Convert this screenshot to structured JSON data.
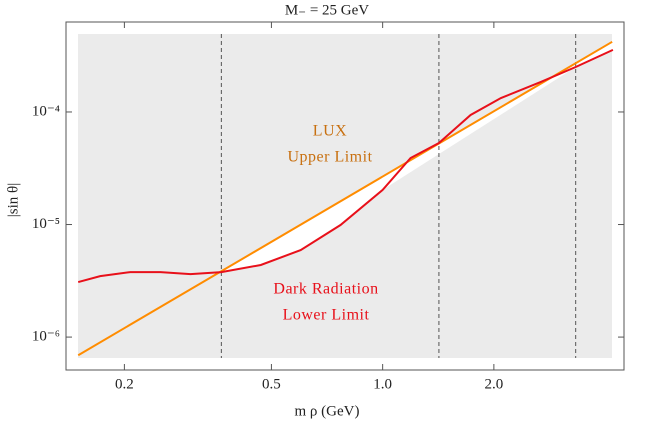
{
  "chart_data": {
    "type": "line",
    "title": "M₋ = 25 GeV",
    "x_label": "m ρ (GeV)",
    "y_label": "|sin θ|",
    "xscale": "log",
    "yscale": "log",
    "xlim": [
      0.139,
      4.5
    ],
    "ylim": [
      5.1e-07,
      0.00063
    ],
    "xticks": [
      0.2,
      0.5,
      {
        "value": 1,
        "label": "1.0"
      },
      {
        "value": 2,
        "label": "2.0"
      }
    ],
    "yticks": [
      {
        "value": 1e-06,
        "label": "10⁻⁶"
      },
      {
        "value": 1e-05,
        "label": "10⁻⁵"
      },
      {
        "value": 0.0001,
        "label": "10⁻⁴"
      }
    ],
    "background": "#ebebeb",
    "series": [
      {
        "color": "#ff8c00",
        "x": [
          0.15,
          4.18
        ],
        "values": [
          6.9e-07,
          0.00042
        ]
      },
      {
        "color": "#e8101a",
        "x": [
          0.15,
          0.172,
          0.2075,
          0.2505,
          0.302,
          0.366,
          0.468,
          0.6,
          0.769,
          1.0,
          1.19,
          1.42,
          1.73,
          2.09,
          2.68,
          3.33,
          4.2
        ],
        "values": [
          3.08e-06,
          3.48e-06,
          3.78e-06,
          3.78e-06,
          3.63e-06,
          3.78e-06,
          4.37e-06,
          5.93e-06,
          9.9e-06,
          2.03e-05,
          3.9e-05,
          5.3e-05,
          9.4e-05,
          0.000133,
          0.000185,
          0.000251,
          0.000356
        ]
      }
    ],
    "vlines": [
      0.366,
      1.42,
      3.33
    ],
    "annotations": [
      {
        "lines": [
          "LUX",
          "Upper Limit"
        ],
        "color": "#c87010"
      },
      {
        "lines": [
          "Dark Radiation",
          "Lower Limit"
        ],
        "color": "#e8101a"
      }
    ]
  }
}
